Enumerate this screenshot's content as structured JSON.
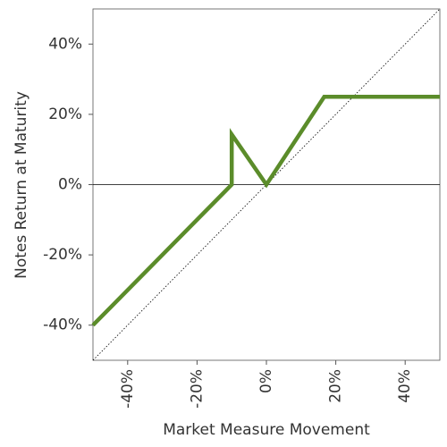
{
  "chart_data": {
    "type": "line",
    "x_label": "Market Measure Movement",
    "y_label": "Notes Return at Maturity",
    "x": [
      -50,
      -10,
      -10,
      0,
      16.67,
      50
    ],
    "values": [
      -40,
      0,
      14.3,
      0,
      25,
      25
    ],
    "color": "#5b8c2a",
    "xlim": [
      -50,
      50
    ],
    "ylim": [
      -50,
      50
    ],
    "xticks": [
      {
        "value": -40,
        "label": "-40%"
      },
      {
        "value": -20,
        "label": "-20%"
      },
      {
        "value": 0,
        "label": "0%"
      },
      {
        "value": 20,
        "label": "20%"
      },
      {
        "value": 40,
        "label": "40%"
      }
    ],
    "yticks": [
      {
        "value": -40,
        "label": "-40%"
      },
      {
        "value": -20,
        "label": "-20%"
      },
      {
        "value": 0,
        "label": "0%"
      },
      {
        "value": 20,
        "label": "20%"
      },
      {
        "value": 40,
        "label": "40%"
      }
    ]
  }
}
